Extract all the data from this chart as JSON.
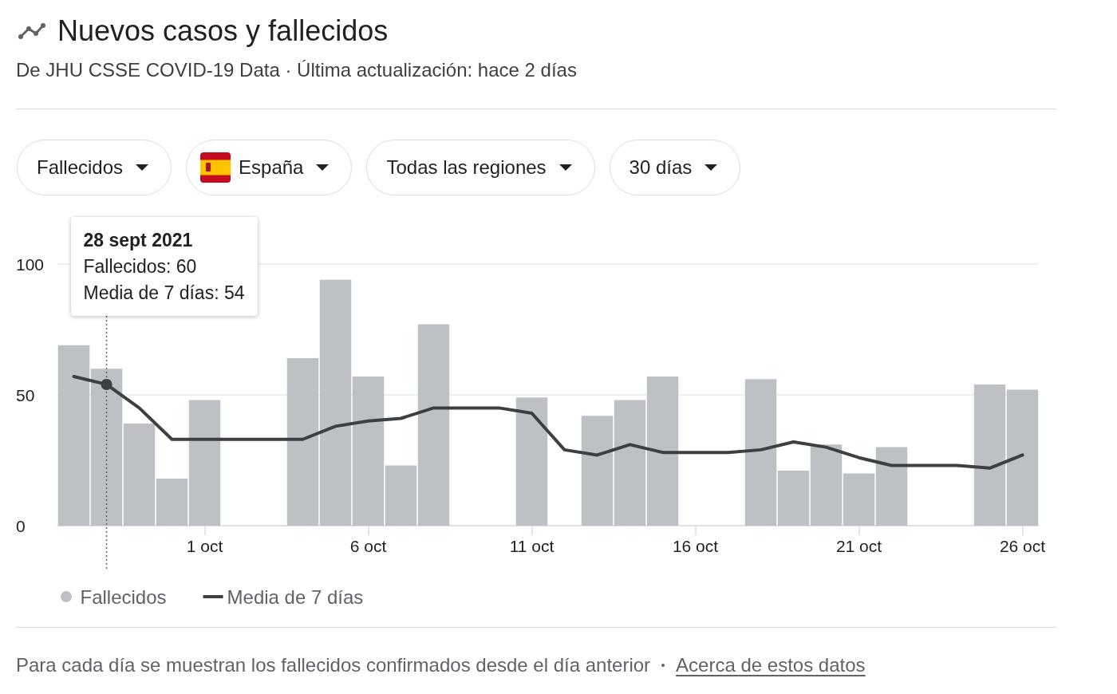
{
  "chart_data": {
    "type": "bar",
    "title": "Nuevos casos y fallecidos",
    "subtitle": "De JHU CSSE COVID-19 Data · Última actualización: hace 2 días",
    "x": [
      "2021-09-27",
      "2021-09-28",
      "2021-09-29",
      "2021-09-30",
      "2021-10-01",
      "2021-10-02",
      "2021-10-03",
      "2021-10-04",
      "2021-10-05",
      "2021-10-06",
      "2021-10-07",
      "2021-10-08",
      "2021-10-09",
      "2021-10-10",
      "2021-10-11",
      "2021-10-12",
      "2021-10-13",
      "2021-10-14",
      "2021-10-15",
      "2021-10-16",
      "2021-10-17",
      "2021-10-18",
      "2021-10-19",
      "2021-10-20",
      "2021-10-21",
      "2021-10-22",
      "2021-10-23",
      "2021-10-24",
      "2021-10-25",
      "2021-10-26"
    ],
    "series": [
      {
        "name": "Fallecidos",
        "color": "#bdc1c6",
        "values": [
          69,
          60,
          39,
          18,
          48,
          0,
          0,
          64,
          94,
          57,
          23,
          77,
          0,
          0,
          49,
          0,
          42,
          48,
          57,
          0,
          0,
          56,
          21,
          31,
          20,
          30,
          0,
          0,
          54,
          52
        ]
      },
      {
        "name": "Media de 7 días",
        "type": "line",
        "color": "#3c4043",
        "values": [
          57,
          54,
          45,
          33,
          33,
          33,
          33,
          33,
          38,
          40,
          41,
          45,
          45,
          45,
          43,
          29,
          27,
          31,
          28,
          28,
          28,
          29,
          32,
          30,
          26,
          23,
          23,
          23,
          22,
          27
        ]
      }
    ],
    "xlim": [
      "2021-09-26T12:00",
      "2021-10-26T12:00"
    ],
    "xticks": [
      {
        "value": "2021-10-01",
        "label": "1 oct"
      },
      {
        "value": "2021-10-06",
        "label": "6 oct"
      },
      {
        "value": "2021-10-11",
        "label": "11 oct"
      },
      {
        "value": "2021-10-16",
        "label": "16 oct"
      },
      {
        "value": "2021-10-21",
        "label": "21 oct"
      },
      {
        "value": "2021-10-26",
        "label": "26 oct"
      }
    ],
    "ylim": [
      0,
      100
    ],
    "yticks": [
      0,
      50,
      100
    ],
    "grid": "y",
    "legend": "bottom left",
    "marker": "none",
    "line_style": "solid",
    "ref_lines": [
      {
        "axis": "x",
        "value": "2021-09-28",
        "color": "#5f6368",
        "line_style": "dotted"
      }
    ],
    "annotations": [
      "28 sept 2021\nFallecidos: 60\nMedia de 7 días: 54",
      "Fallecidos",
      "España",
      "Todas las regiones",
      "30 días",
      "Para cada día se muestran los fallecidos confirmados desde el día anterior",
      "Acerca de estos datos"
    ]
  }
}
